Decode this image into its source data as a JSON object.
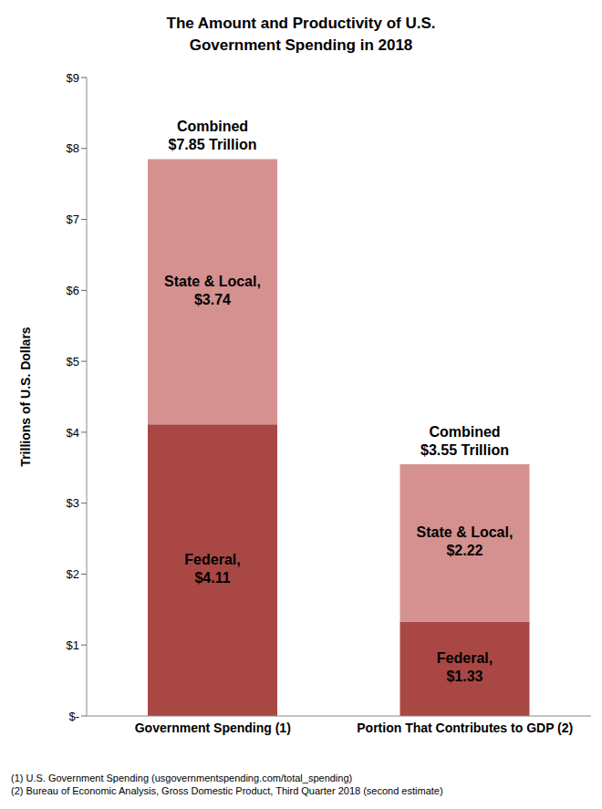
{
  "chart_data": {
    "type": "bar",
    "title": "The Amount and Productivity of U.S. Government Spending in 2018",
    "y_label": "Trillions of U.S. Dollars",
    "categories": [
      "Government Spending (1)",
      "Portion That Contributes to GDP (2)"
    ],
    "series": [
      {
        "name": "Federal",
        "color": "#a94744",
        "values": [
          4.11,
          1.33
        ],
        "value_labels": [
          "Federal, $4.11",
          "Federal, $1.33"
        ]
      },
      {
        "name": "State & Local",
        "color": "#d49190",
        "values": [
          3.74,
          2.22
        ],
        "value_labels": [
          "State & Local, $3.74",
          "State & Local, $2.22"
        ]
      }
    ],
    "total_labels": [
      "Combined $7.85 Trillion",
      "Combined $3.55 Trillion"
    ],
    "ylim": [
      0,
      9
    ],
    "yticks": [
      {
        "value": 0,
        "label": "$-"
      },
      {
        "value": 1,
        "label": "$1"
      },
      {
        "value": 2,
        "label": "$2"
      },
      {
        "value": 3,
        "label": "$3"
      },
      {
        "value": 4,
        "label": "$4"
      },
      {
        "value": 5,
        "label": "$5"
      },
      {
        "value": 6,
        "label": "$6"
      },
      {
        "value": 7,
        "label": "$7"
      },
      {
        "value": 8,
        "label": "$8"
      },
      {
        "value": 9,
        "label": "$9"
      }
    ],
    "stacked": true,
    "data_labels": true,
    "grid": false,
    "notes": [
      "(1) U.S. Government Spending (usgovernmentspending.com/total_spending)",
      "(2) Bureau of Economic Analysis, Gross Domestic Product, Third Quarter 2018  (second estimate)"
    ]
  }
}
